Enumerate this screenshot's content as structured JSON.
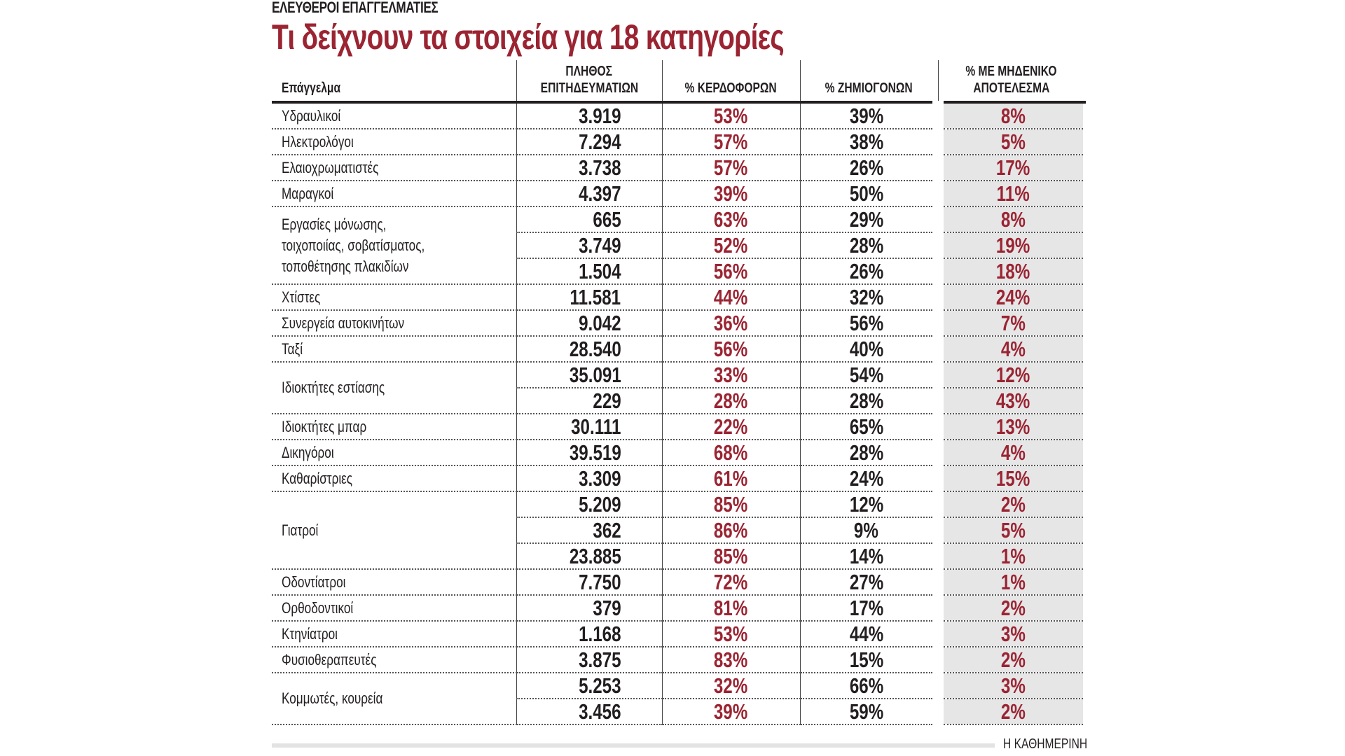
{
  "kicker": "ΕΛΕΥΘΕΡΟΙ ΕΠΑΓΓΕΛΜΑΤΙΕΣ",
  "title": "Τι δείχνουν τα στοιχεία για 18 κατηγορίες",
  "columns": {
    "profession": "Επάγγελμα",
    "count_line1": "ΠΛΗΘΟΣ",
    "count_line2": "ΕΠΙΤΗΔΕΥΜΑΤΙΩΝ",
    "profit": "% ΚΕΡΔΟΦΟΡΩΝ",
    "loss": "% ΖΗΜΙΟΓΟΝΩΝ",
    "zero_line1": "% ΜΕ ΜΗΔΕΝΙΚΟ",
    "zero_line2": "ΑΠΟΤΕΛΕΣΜΑ"
  },
  "colors": {
    "accent": "#9b2432",
    "highlight_column": "#e6e6e7",
    "text": "#231f20"
  },
  "groups": [
    {
      "name": "Υδραυλικοί",
      "rows": [
        {
          "count": "3.919",
          "profit": "53%",
          "loss": "39%",
          "zero": "8%"
        }
      ]
    },
    {
      "name": "Ηλεκτρολόγοι",
      "rows": [
        {
          "count": "7.294",
          "profit": "57%",
          "loss": "38%",
          "zero": "5%"
        }
      ]
    },
    {
      "name": "Ελαιοχρωματιστές",
      "rows": [
        {
          "count": "3.738",
          "profit": "57%",
          "loss": "26%",
          "zero": "17%"
        }
      ]
    },
    {
      "name": "Μαραγκοί",
      "rows": [
        {
          "count": "4.397",
          "profit": "39%",
          "loss": "50%",
          "zero": "11%"
        }
      ]
    },
    {
      "name": "Εργασίες μόνωσης, τοιχοποιίας, σοβατίσματος, τοποθέτησης πλακιδίων",
      "name_lines": [
        "Εργασίες μόνωσης,",
        "τοιχοποιίας, σοβατίσματος,",
        "τοποθέτησης πλακιδίων"
      ],
      "rows": [
        {
          "count": "665",
          "profit": "63%",
          "loss": "29%",
          "zero": "8%"
        },
        {
          "count": "3.749",
          "profit": "52%",
          "loss": "28%",
          "zero": "19%"
        },
        {
          "count": "1.504",
          "profit": "56%",
          "loss": "26%",
          "zero": "18%"
        }
      ]
    },
    {
      "name": "Χτίστες",
      "rows": [
        {
          "count": "11.581",
          "profit": "44%",
          "loss": "32%",
          "zero": "24%"
        }
      ]
    },
    {
      "name": "Συνεργεία αυτοκινήτων",
      "rows": [
        {
          "count": "9.042",
          "profit": "36%",
          "loss": "56%",
          "zero": "7%"
        }
      ]
    },
    {
      "name": "Ταξί",
      "rows": [
        {
          "count": "28.540",
          "profit": "56%",
          "loss": "40%",
          "zero": "4%"
        }
      ]
    },
    {
      "name": "Ιδιοκτήτες εστίασης",
      "rows": [
        {
          "count": "35.091",
          "profit": "33%",
          "loss": "54%",
          "zero": "12%"
        },
        {
          "count": "229",
          "profit": "28%",
          "loss": "28%",
          "zero": "43%"
        }
      ]
    },
    {
      "name": "Ιδιοκτήτες μπαρ",
      "rows": [
        {
          "count": "30.111",
          "profit": "22%",
          "loss": "65%",
          "zero": "13%"
        }
      ]
    },
    {
      "name": "Δικηγόροι",
      "rows": [
        {
          "count": "39.519",
          "profit": "68%",
          "loss": "28%",
          "zero": "4%"
        }
      ]
    },
    {
      "name": "Καθαρίστριες",
      "rows": [
        {
          "count": "3.309",
          "profit": "61%",
          "loss": "24%",
          "zero": "15%"
        }
      ]
    },
    {
      "name": "Γιατροί",
      "rows": [
        {
          "count": "5.209",
          "profit": "85%",
          "loss": "12%",
          "zero": "2%"
        },
        {
          "count": "362",
          "profit": "86%",
          "loss": "9%",
          "zero": "5%"
        },
        {
          "count": "23.885",
          "profit": "85%",
          "loss": "14%",
          "zero": "1%"
        }
      ]
    },
    {
      "name": "Οδοντίατροι",
      "rows": [
        {
          "count": "7.750",
          "profit": "72%",
          "loss": "27%",
          "zero": "1%"
        }
      ]
    },
    {
      "name": "Ορθοδοντικοί",
      "rows": [
        {
          "count": "379",
          "profit": "81%",
          "loss": "17%",
          "zero": "2%"
        }
      ]
    },
    {
      "name": "Κτηνίατροι",
      "rows": [
        {
          "count": "1.168",
          "profit": "53%",
          "loss": "44%",
          "zero": "3%"
        }
      ]
    },
    {
      "name": "Φυσιοθεραπευτές",
      "rows": [
        {
          "count": "3.875",
          "profit": "83%",
          "loss": "15%",
          "zero": "2%"
        }
      ]
    },
    {
      "name": "Κομμωτές, κουρεία",
      "rows": [
        {
          "count": "5.253",
          "profit": "32%",
          "loss": "66%",
          "zero": "3%"
        },
        {
          "count": "3.456",
          "profit": "39%",
          "loss": "59%",
          "zero": "2%"
        }
      ]
    }
  ],
  "source": "Η ΚΑΘΗΜΕΡΙΝΗ"
}
